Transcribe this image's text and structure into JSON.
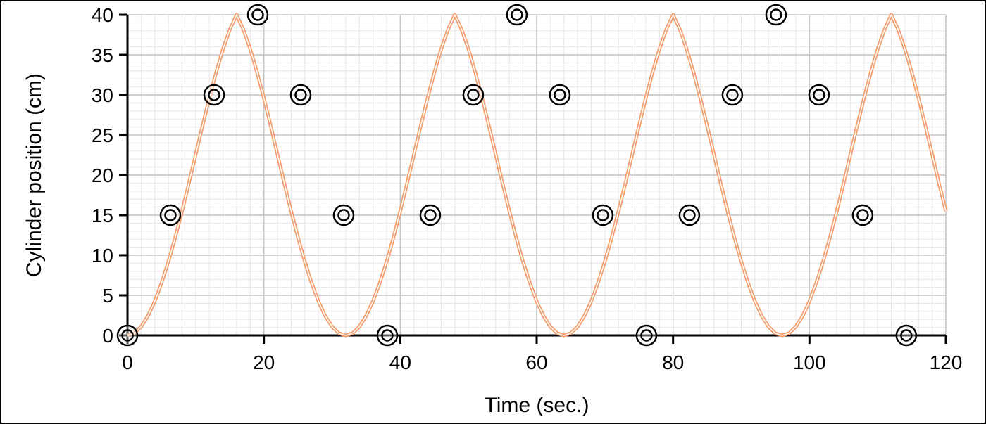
{
  "chart_data": {
    "type": "line",
    "title": "",
    "xlabel": "Time (sec.)",
    "ylabel": "Cylinder position (cm)",
    "xlim": [
      0,
      120
    ],
    "ylim": [
      0,
      40
    ],
    "x_ticks": [
      0,
      20,
      40,
      60,
      80,
      100,
      120
    ],
    "y_ticks": [
      0,
      5,
      10,
      15,
      20,
      25,
      30,
      35,
      40
    ],
    "x_tick_labels": [
      "0",
      "20",
      "40",
      "60",
      "80",
      "100",
      "120"
    ],
    "y_tick_labels": [
      "0",
      "5",
      "10",
      "15",
      "20",
      "25",
      "30",
      "35",
      "40"
    ],
    "grid": true,
    "legend": "none",
    "series": [
      {
        "style": "curve",
        "color": "#f2a072",
        "x": [
          0,
          1,
          2,
          3,
          4,
          5,
          6,
          7,
          8,
          9,
          10,
          11,
          12,
          13,
          14,
          15,
          16,
          17,
          18,
          19,
          20,
          21,
          22,
          23,
          24,
          25,
          26,
          27,
          28,
          29,
          30,
          31,
          32,
          33,
          34,
          35,
          36,
          37,
          38,
          39,
          40,
          41,
          42,
          43,
          44,
          45,
          46,
          47,
          48,
          49,
          50,
          51,
          52,
          53,
          54,
          55,
          56,
          57,
          58,
          59,
          60,
          61,
          62,
          63,
          64,
          65,
          66,
          67,
          68,
          69,
          70,
          71,
          72,
          73,
          74,
          75,
          76,
          77,
          78,
          79,
          80,
          81,
          82,
          83,
          84,
          85,
          86,
          87,
          88,
          89,
          90,
          91,
          92,
          93,
          94,
          95,
          96,
          97,
          98,
          99,
          100,
          101,
          102,
          103,
          104,
          105,
          106,
          107,
          108,
          109,
          110,
          111,
          112,
          113,
          114,
          115,
          116,
          117,
          118,
          119,
          120
        ],
        "y": [
          0,
          0.27,
          1.09,
          2.43,
          4.26,
          6.54,
          9.21,
          12.21,
          15.49,
          18.96,
          22.56,
          26.14,
          29.6,
          32.83,
          35.71,
          38.16,
          40,
          38.16,
          35.71,
          32.83,
          29.6,
          26.14,
          22.56,
          18.96,
          15.49,
          12.21,
          9.21,
          6.54,
          4.26,
          2.43,
          1.09,
          0.27,
          0,
          0.27,
          1.09,
          2.43,
          4.26,
          6.54,
          9.21,
          12.21,
          15.49,
          18.96,
          22.56,
          26.14,
          29.6,
          32.83,
          35.71,
          38.16,
          40,
          38.16,
          35.71,
          32.83,
          29.6,
          26.14,
          22.56,
          18.96,
          15.49,
          12.21,
          9.21,
          6.54,
          4.26,
          2.43,
          1.09,
          0.27,
          0,
          0.27,
          1.09,
          2.43,
          4.26,
          6.54,
          9.21,
          12.21,
          15.49,
          18.96,
          22.56,
          26.14,
          29.6,
          32.83,
          35.71,
          38.16,
          40,
          38.16,
          35.71,
          32.83,
          29.6,
          26.14,
          22.56,
          18.96,
          15.49,
          12.21,
          9.21,
          6.54,
          4.26,
          2.43,
          1.09,
          0.27,
          0,
          0.27,
          1.09,
          2.43,
          4.26,
          6.54,
          9.21,
          12.21,
          15.49,
          18.96,
          22.56,
          26.14,
          29.6,
          32.83,
          35.71,
          38.16,
          40,
          38.16,
          35.71,
          32.83,
          29.6,
          26.14,
          22.56,
          18.96,
          15.49
        ]
      },
      {
        "style": "markers",
        "marker": "double-circle",
        "color": "#000000",
        "x": [
          0,
          6.3,
          12.7,
          19.1,
          25.4,
          31.7,
          38.1,
          44.4,
          50.7,
          57.1,
          63.4,
          69.7,
          76.1,
          82.4,
          88.7,
          95.1,
          101.4,
          107.8,
          114.2
        ],
        "y": [
          0,
          15,
          30,
          40,
          30,
          15,
          0,
          15,
          30,
          40,
          30,
          15,
          0,
          15,
          30,
          40,
          30,
          15,
          0
        ]
      }
    ]
  }
}
